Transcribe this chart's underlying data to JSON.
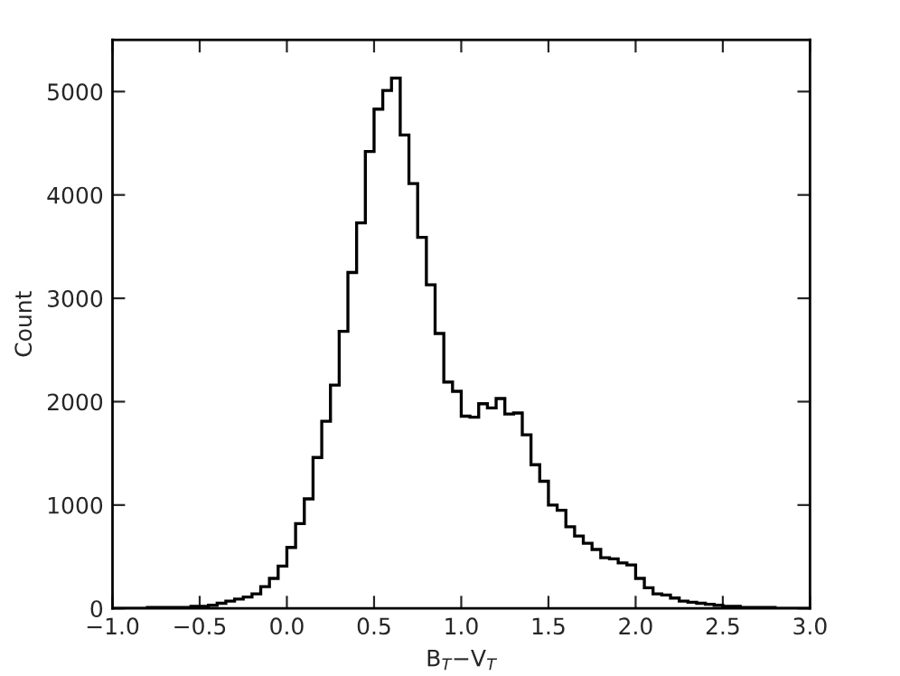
{
  "chart_data": {
    "type": "histogram",
    "xlabel": "B$_{T}$−V$_{T}$",
    "ylabel": "Count",
    "bins": [
      -1.0,
      -0.95,
      -0.9,
      -0.85,
      -0.8,
      -0.75,
      -0.7,
      -0.65,
      -0.6,
      -0.55,
      -0.5,
      -0.45,
      -0.4,
      -0.35,
      -0.3,
      -0.25,
      -0.2,
      -0.15,
      -0.1,
      -0.05,
      0.0,
      0.05,
      0.1,
      0.15,
      0.2,
      0.25,
      0.3,
      0.35,
      0.4,
      0.45,
      0.5,
      0.55,
      0.6,
      0.65,
      0.7,
      0.75,
      0.8,
      0.85,
      0.9,
      0.95,
      1.0,
      1.05,
      1.1,
      1.15,
      1.2,
      1.25,
      1.3,
      1.35,
      1.4,
      1.45,
      1.5,
      1.55,
      1.6,
      1.65,
      1.7,
      1.75,
      1.8,
      1.85,
      1.9,
      1.95,
      2.0,
      2.05,
      2.1,
      2.15,
      2.2,
      2.25,
      2.3,
      2.35,
      2.4,
      2.45,
      2.5,
      2.55,
      2.6,
      2.65,
      2.7,
      2.75,
      2.8,
      2.85,
      2.9,
      2.95,
      3.0
    ],
    "values": [
      0,
      0,
      0,
      0,
      10,
      10,
      10,
      10,
      10,
      20,
      20,
      30,
      50,
      70,
      90,
      110,
      140,
      210,
      290,
      410,
      590,
      820,
      1060,
      1460,
      1810,
      2160,
      2680,
      3250,
      3730,
      4420,
      4830,
      5010,
      5130,
      4580,
      4110,
      3590,
      3130,
      2660,
      2190,
      2100,
      1860,
      1850,
      1980,
      1940,
      2030,
      1880,
      1890,
      1680,
      1390,
      1230,
      1000,
      950,
      790,
      700,
      630,
      570,
      490,
      480,
      440,
      420,
      290,
      200,
      140,
      130,
      100,
      70,
      60,
      50,
      40,
      30,
      20,
      20,
      10,
      10,
      10,
      10,
      0,
      0,
      0,
      0
    ],
    "color": "#000000",
    "xlim": [
      -1.0,
      3.0
    ],
    "xticks": [
      {
        "value": -1.0,
        "label": "−1.0"
      },
      {
        "value": -0.5,
        "label": "−0.5"
      },
      {
        "value": 0.0,
        "label": "0.0"
      },
      0.5,
      {
        "value": 1.0,
        "label": "1.0"
      },
      1.5,
      {
        "value": 2.0,
        "label": "2.0"
      },
      2.5,
      {
        "value": 3.0,
        "label": "3.0"
      }
    ],
    "ylim": [
      0,
      5500
    ],
    "yticks": [
      0,
      1000,
      2000,
      3000,
      4000,
      5000
    ],
    "grid": false
  }
}
